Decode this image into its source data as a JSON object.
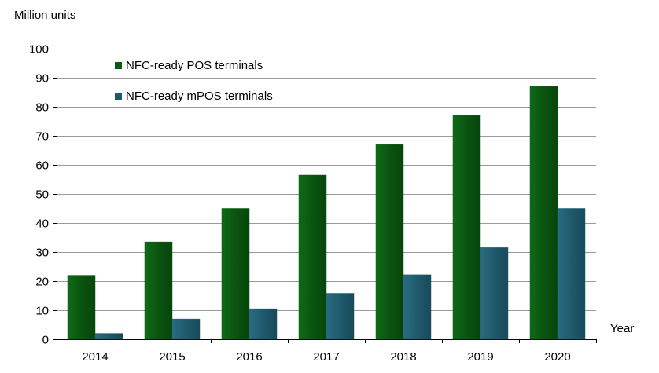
{
  "chart_data": {
    "type": "bar",
    "title": "",
    "ylabel": "Million units",
    "xlabel": "Year",
    "ylim": [
      0,
      100
    ],
    "yticks": [
      0,
      10,
      20,
      30,
      40,
      50,
      60,
      70,
      80,
      90,
      100
    ],
    "grid": true,
    "legend_position": "top-left",
    "categories": [
      "2014",
      "2015",
      "2016",
      "2017",
      "2018",
      "2019",
      "2020"
    ],
    "series": [
      {
        "name": "NFC-ready POS terminals",
        "color": "#0b5a12",
        "values": [
          22,
          33.5,
          45,
          56.5,
          67,
          77,
          87
        ]
      },
      {
        "name": "NFC-ready mPOS terminals",
        "color": "#1f5a6c",
        "values": [
          2,
          7,
          10.5,
          15.8,
          22.2,
          31.5,
          45
        ]
      }
    ]
  }
}
